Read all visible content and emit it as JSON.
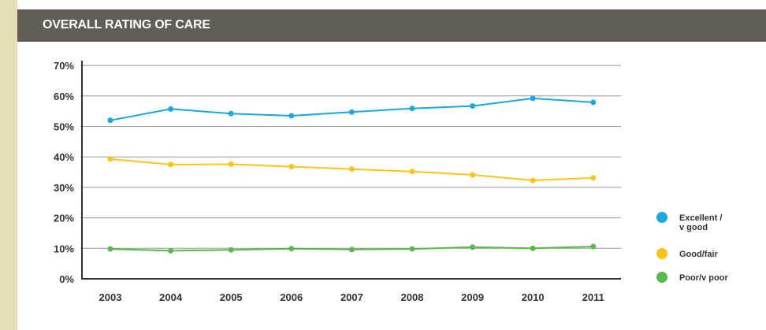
{
  "header": {
    "title": "OVERALL RATING OF CARE"
  },
  "colors": {
    "background": "#e5dfb5",
    "header": "#625d57",
    "excellent": "#1ba7e1",
    "good": "#fcc419",
    "poor": "#5ab94c",
    "grid": "#999999",
    "axis": "#333333"
  },
  "chart_data": {
    "type": "line",
    "title": "OVERALL RATING OF CARE",
    "xlabel": "",
    "ylabel": "",
    "x": [
      "2003",
      "2004",
      "2005",
      "2006",
      "2007",
      "2008",
      "2009",
      "2010",
      "2011"
    ],
    "y_ticks": [
      "0%",
      "10%",
      "20%",
      "30%",
      "40%",
      "50%",
      "60%",
      "70%"
    ],
    "ylim": [
      0,
      70
    ],
    "grid": true,
    "legend_position": "right",
    "series": [
      {
        "name_lines": [
          "Excellent /",
          "v good"
        ],
        "color": "#1ba7e1",
        "values": [
          52,
          55.7,
          54.2,
          53.5,
          54.7,
          55.9,
          56.7,
          59.2,
          57.9
        ]
      },
      {
        "name_lines": [
          "Good/fair"
        ],
        "color": "#fcc419",
        "values": [
          39.3,
          37.5,
          37.6,
          36.8,
          36,
          35.2,
          34.1,
          32.3,
          33.1
        ]
      },
      {
        "name_lines": [
          "Poor/v poor"
        ],
        "color": "#5ab94c",
        "values": [
          9.8,
          9.2,
          9.5,
          9.9,
          9.6,
          9.8,
          10.4,
          10,
          10.6
        ]
      }
    ]
  }
}
